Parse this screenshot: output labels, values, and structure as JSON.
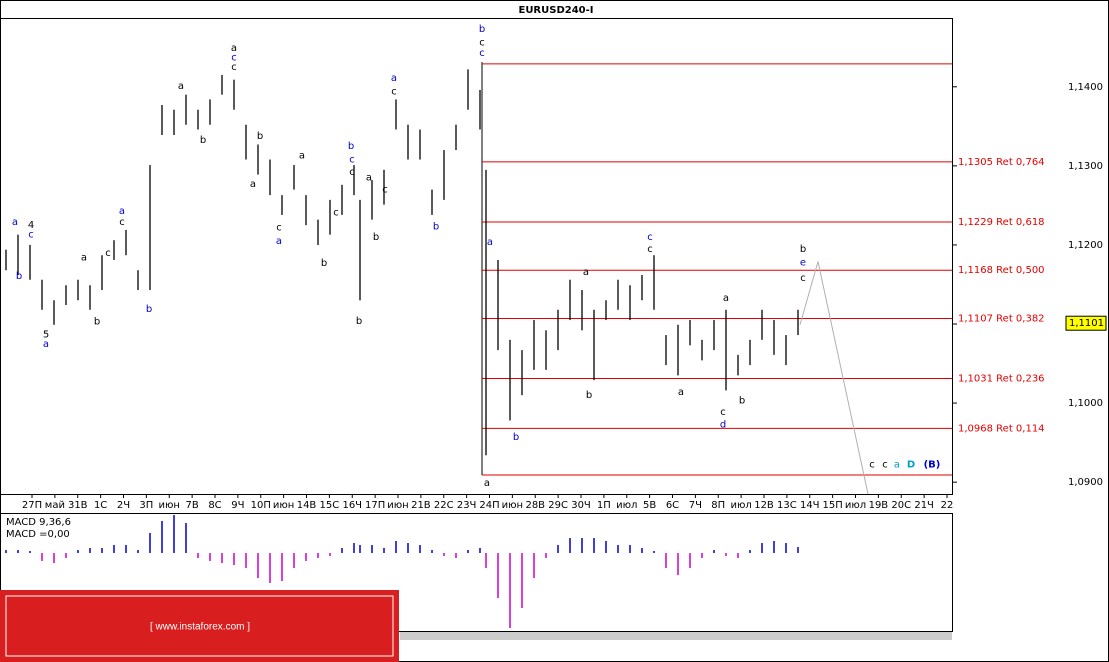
{
  "chart_data": {
    "type": "hl-bars",
    "title": "EURUSD240-I",
    "color": "#000000",
    "xlim": [
      0,
      238
    ],
    "ylim": [
      1.0885,
      1.1487
    ],
    "yticks": [
      {
        "value": 1.14,
        "label": "1,1400"
      },
      {
        "value": 1.13,
        "label": "1,1300"
      },
      {
        "value": 1.12,
        "label": "1,1200"
      },
      {
        "value": 1.11,
        "label": "1,1100"
      },
      {
        "value": 1.1,
        "label": "1,1000"
      },
      {
        "value": 1.09,
        "label": "1,0900"
      }
    ],
    "categories": [
      "27П",
      "май",
      "31В",
      "1С",
      "2Ч",
      "3П",
      "июн",
      "7В",
      "8С",
      "9Ч",
      "10П",
      "июн",
      "14В",
      "15С",
      "16Ч",
      "17П",
      "июн",
      "21В",
      "22С",
      "23Ч",
      "24П",
      "июн",
      "28В",
      "29С",
      "30Ч",
      "1П",
      "июл",
      "5В",
      "6С",
      "7Ч",
      "8П",
      "июл",
      "12В",
      "13С",
      "14Ч",
      "15П",
      "июл",
      "19В",
      "20С",
      "21Ч",
      "22"
    ],
    "x": [
      1.5,
      4.5,
      7.5,
      10.5,
      13.5,
      16.5,
      19.5,
      22.5,
      25.5,
      28.5,
      31.5,
      34.5,
      37.5,
      40.5,
      43.5,
      46.5,
      49.5,
      52.5,
      55.5,
      58.5,
      61.5,
      64.5,
      67.5,
      70.5,
      73.5,
      76.5,
      79.5,
      82.5,
      85.5,
      88.5,
      90,
      93,
      96,
      99,
      102,
      105,
      108,
      111,
      114,
      117,
      120,
      121.5,
      124.5,
      127.5,
      130.5,
      133.5,
      136.5,
      139.5,
      142.5,
      145.5,
      148.5,
      151.5,
      154.5,
      157.5,
      160.5,
      163.5,
      166.5,
      169.5,
      172.5,
      175.5,
      178.5,
      181.5,
      184.5,
      187.5,
      190.5,
      193.5,
      196.5,
      199.5
    ],
    "high": [
      1.1194,
      1.1213,
      1.12,
      1.1156,
      1.113,
      1.1149,
      1.1156,
      1.1149,
      1.1187,
      1.1206,
      1.1219,
      1.1168,
      1.1301,
      1.1377,
      1.1371,
      1.139,
      1.1371,
      1.1384,
      1.1415,
      1.1409,
      1.1352,
      1.1327,
      1.1308,
      1.1263,
      1.1301,
      1.1263,
      1.1232,
      1.1257,
      1.1276,
      1.1301,
      1.1257,
      1.1282,
      1.1295,
      1.1384,
      1.1352,
      1.1346,
      1.127,
      1.132,
      1.1352,
      1.1422,
      1.1396,
      1.1295,
      1.1181,
      1.108,
      1.1067,
      1.1105,
      1.1092,
      1.1118,
      1.1156,
      1.1143,
      1.1118,
      1.113,
      1.1156,
      1.1149,
      1.1162,
      1.1187,
      1.1086,
      1.1099,
      1.1105,
      1.108,
      1.1105,
      1.1118,
      1.1061,
      1.108,
      1.1118,
      1.1105,
      1.1086,
      1.1118
    ],
    "low": [
      1.1168,
      1.1162,
      1.1156,
      1.1118,
      1.1099,
      1.1124,
      1.113,
      1.1118,
      1.1143,
      1.1181,
      1.1187,
      1.1143,
      1.1143,
      1.1339,
      1.1339,
      1.1352,
      1.1346,
      1.1352,
      1.139,
      1.1371,
      1.1308,
      1.1289,
      1.1263,
      1.1238,
      1.127,
      1.1225,
      1.12,
      1.1213,
      1.1238,
      1.1263,
      1.113,
      1.1232,
      1.1251,
      1.1346,
      1.1308,
      1.1308,
      1.1238,
      1.1257,
      1.132,
      1.1371,
      1.1346,
      1.0934,
      1.1067,
      1.0978,
      1.101,
      1.1042,
      1.1042,
      1.1067,
      1.1105,
      1.1092,
      1.1029,
      1.1105,
      1.1118,
      1.1105,
      1.113,
      1.1118,
      1.1048,
      1.1035,
      1.1073,
      1.1054,
      1.1067,
      1.1016,
      1.1035,
      1.1048,
      1.108,
      1.1061,
      1.1048,
      1.1086
    ],
    "last": {
      "value": 1.1101,
      "label": "1,1101"
    },
    "levels_start": 120.5,
    "levels_color": "#e00000",
    "levels": [
      1.1429,
      {
        "value": 1.1305,
        "label": "1,1305 Ret 0,764"
      },
      {
        "value": 1.1229,
        "label": "1,1229 Ret 0,618"
      },
      {
        "value": 1.1168,
        "label": "1,1168 Ret 0,500"
      },
      {
        "value": 1.1107,
        "label": "1,1107 Ret 0,382"
      },
      {
        "value": 1.1031,
        "label": "1,1031 Ret 0,236"
      },
      {
        "value": 1.0968,
        "label": "1,0968 Ret 0,114"
      },
      1.0909
    ],
    "projection": {
      "x": [
        200,
        204.5,
        217
      ],
      "y": [
        1.1099,
        1.1179,
        1.0885
      ],
      "color": "#b0b0b0"
    },
    "annotations": [
      {
        "text": "a",
        "x": 3.75,
        "y": 1.1229,
        "color": "#0000cc"
      },
      {
        "text": "4",
        "x": 7.75,
        "y": 1.1225,
        "color": "#000000"
      },
      {
        "text": "c",
        "x": 7.75,
        "y": 1.1213,
        "color": "#0000cc"
      },
      {
        "text": "b",
        "x": 4.75,
        "y": 1.1161,
        "color": "#0000cc"
      },
      {
        "text": "5",
        "x": 11.5,
        "y": 1.1087,
        "color": "#000000"
      },
      {
        "text": "a",
        "x": 11.5,
        "y": 1.1075,
        "color": "#0000cc"
      },
      {
        "text": "a",
        "x": 21,
        "y": 1.1184,
        "color": "#000000"
      },
      {
        "text": "b",
        "x": 24.25,
        "y": 1.1103,
        "color": "#000000"
      },
      {
        "text": "c",
        "x": 27,
        "y": 1.119,
        "color": "#000000"
      },
      {
        "text": "a",
        "x": 30.5,
        "y": 1.1243,
        "color": "#0000cc"
      },
      {
        "text": "c",
        "x": 30.5,
        "y": 1.1229,
        "color": "#000000"
      },
      {
        "text": "b",
        "x": 37.25,
        "y": 1.1119,
        "color": "#0000cc"
      },
      {
        "text": "a",
        "x": 45.25,
        "y": 1.1401,
        "color": "#000000"
      },
      {
        "text": "b",
        "x": 50.75,
        "y": 1.1333,
        "color": "#000000"
      },
      {
        "text": "a",
        "x": 58.5,
        "y": 1.1449,
        "color": "#000000"
      },
      {
        "text": "c",
        "x": 58.5,
        "y": 1.1437,
        "color": "#0000cc"
      },
      {
        "text": "c",
        "x": 58.5,
        "y": 1.1425,
        "color": "#000000"
      },
      {
        "text": "b",
        "x": 65,
        "y": 1.1338,
        "color": "#000000"
      },
      {
        "text": "a",
        "x": 63.25,
        "y": 1.1277,
        "color": "#000000"
      },
      {
        "text": "c",
        "x": 69.75,
        "y": 1.1222,
        "color": "#000000"
      },
      {
        "text": "a",
        "x": 69.75,
        "y": 1.1205,
        "color": "#0000cc"
      },
      {
        "text": "a",
        "x": 75.5,
        "y": 1.1313,
        "color": "#000000"
      },
      {
        "text": "b",
        "x": 81,
        "y": 1.1177,
        "color": "#000000"
      },
      {
        "text": "c",
        "x": 84,
        "y": 1.1241,
        "color": "#000000"
      },
      {
        "text": "b",
        "x": 87.75,
        "y": 1.1325,
        "color": "#0000cc"
      },
      {
        "text": "c",
        "x": 88,
        "y": 1.1308,
        "color": "#0000cc"
      },
      {
        "text": "c",
        "x": 88,
        "y": 1.1292,
        "color": "#000000"
      },
      {
        "text": "b",
        "x": 89.75,
        "y": 1.1104,
        "color": "#000000"
      },
      {
        "text": "a",
        "x": 92.25,
        "y": 1.1285,
        "color": "#000000"
      },
      {
        "text": "b",
        "x": 94,
        "y": 1.121,
        "color": "#000000"
      },
      {
        "text": "c",
        "x": 96.25,
        "y": 1.127,
        "color": "#000000"
      },
      {
        "text": "a",
        "x": 98.5,
        "y": 1.1411,
        "color": "#0000cc"
      },
      {
        "text": "c",
        "x": 98.5,
        "y": 1.1394,
        "color": "#000000"
      },
      {
        "text": "b",
        "x": 109,
        "y": 1.1223,
        "color": "#0000cc"
      },
      {
        "text": "b",
        "x": 120.5,
        "y": 1.1473,
        "color": "#0000cc"
      },
      {
        "text": "c",
        "x": 120.5,
        "y": 1.1456,
        "color": "#000000"
      },
      {
        "text": "c",
        "x": 120.5,
        "y": 1.1443,
        "color": "#0000cc"
      },
      {
        "text": "a",
        "x": 121.75,
        "y": 1.0899,
        "color": "#000000"
      },
      {
        "text": "a",
        "x": 122.5,
        "y": 1.1204,
        "color": "#0000cc"
      },
      {
        "text": "b",
        "x": 129,
        "y": 1.0957,
        "color": "#0000cc"
      },
      {
        "text": "a",
        "x": 146.5,
        "y": 1.1166,
        "color": "#000000"
      },
      {
        "text": "b",
        "x": 147.25,
        "y": 1.101,
        "color": "#000000"
      },
      {
        "text": "c",
        "x": 162.5,
        "y": 1.121,
        "color": "#0000cc"
      },
      {
        "text": "c",
        "x": 162.5,
        "y": 1.1195,
        "color": "#000000"
      },
      {
        "text": "a",
        "x": 170.25,
        "y": 1.1014,
        "color": "#000000"
      },
      {
        "text": "a",
        "x": 181.5,
        "y": 1.1133,
        "color": "#000000"
      },
      {
        "text": "c",
        "x": 180.75,
        "y": 1.0989,
        "color": "#000000"
      },
      {
        "text": "d",
        "x": 180.75,
        "y": 1.0973,
        "color": "#0000cc"
      },
      {
        "text": "b",
        "x": 185.5,
        "y": 1.1003,
        "color": "#000000"
      },
      {
        "text": "b",
        "x": 200.75,
        "y": 1.1195,
        "color": "#000000"
      },
      {
        "text": "e",
        "x": 200.75,
        "y": 1.1178,
        "color": "#0000cc"
      },
      {
        "text": "c",
        "x": 200.75,
        "y": 1.1158,
        "color": "#000000"
      },
      {
        "text": "c",
        "x": 218,
        "y": 1.0922,
        "color": "#000000"
      },
      {
        "text": "c",
        "x": 221.25,
        "y": 1.0922,
        "color": "#000000"
      },
      {
        "text": "a",
        "x": 224.25,
        "y": 1.0922,
        "color": "#00a0c8"
      },
      {
        "text": "D",
        "x": 227.75,
        "y": 1.0922,
        "color": "#00a0c8"
      },
      {
        "text": "(B)",
        "x": 233,
        "y": 1.0922,
        "color": "#0000cc"
      }
    ],
    "macd": {
      "title": "MACD 9,36,6",
      "value_text": "MACD =0,00",
      "ylim": [
        -0.0077,
        0.0038
      ],
      "up_color": "#0000cc",
      "down_color": "#cc00cc",
      "values": [
        0.0003,
        0.0003,
        0.0002,
        -0.0008,
        -0.001,
        -0.0005,
        0.0003,
        0.0005,
        0.0005,
        0.0008,
        0.0008,
        0.0003,
        0.002,
        0.0032,
        0.0038,
        0.003,
        -0.0005,
        -0.0008,
        -0.001,
        -0.0012,
        -0.0015,
        -0.0025,
        -0.003,
        -0.0028,
        -0.0015,
        -0.0008,
        -0.0005,
        -0.0003,
        0.0005,
        0.001,
        0.0008,
        0.0008,
        0.0005,
        0.0012,
        0.001,
        0.0008,
        0.0003,
        -0.0003,
        -0.0005,
        0.0003,
        0.0005,
        -0.0015,
        -0.0045,
        -0.0075,
        -0.0055,
        -0.0025,
        -0.0005,
        0.0008,
        0.0015,
        0.0015,
        0.0015,
        0.0012,
        0.0008,
        0.0008,
        0.0005,
        0.0002,
        -0.0015,
        -0.0022,
        -0.0015,
        -0.0005,
        0.0003,
        -0.0003,
        -0.0005,
        0.0003,
        0.001,
        0.0012,
        0.001,
        0.0006
      ]
    },
    "watermark": "[ www.instaforex.com ]"
  }
}
